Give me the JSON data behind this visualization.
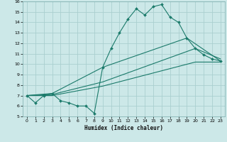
{
  "xlabel": "Humidex (Indice chaleur)",
  "bg_color": "#cce8e8",
  "grid_color": "#aacfcf",
  "line_color": "#1a7a6a",
  "xlim": [
    -0.5,
    23.5
  ],
  "ylim": [
    5,
    16
  ],
  "xticks": [
    0,
    1,
    2,
    3,
    4,
    5,
    6,
    7,
    8,
    9,
    10,
    11,
    12,
    13,
    14,
    15,
    16,
    17,
    18,
    19,
    20,
    21,
    22,
    23
  ],
  "yticks": [
    5,
    6,
    7,
    8,
    9,
    10,
    11,
    12,
    13,
    14,
    15,
    16
  ],
  "main_line": {
    "x": [
      0,
      1,
      2,
      3,
      4,
      5,
      6,
      7,
      8,
      9,
      10,
      11,
      12,
      13,
      14,
      15,
      16,
      17,
      18,
      19,
      20,
      21,
      22,
      23
    ],
    "y": [
      7.0,
      6.3,
      7.0,
      7.2,
      6.5,
      6.3,
      6.0,
      6.0,
      5.3,
      9.7,
      11.5,
      13.0,
      14.3,
      15.3,
      14.7,
      15.5,
      15.7,
      14.5,
      14.0,
      12.5,
      11.5,
      10.9,
      10.5,
      10.3
    ]
  },
  "extra_lines": [
    {
      "x": [
        0,
        3,
        9,
        19,
        23
      ],
      "y": [
        7.0,
        7.2,
        9.7,
        12.5,
        10.3
      ]
    },
    {
      "x": [
        0,
        3,
        9,
        20,
        23
      ],
      "y": [
        7.0,
        7.1,
        8.3,
        11.5,
        10.5
      ]
    },
    {
      "x": [
        0,
        3,
        9,
        20,
        23
      ],
      "y": [
        7.0,
        7.0,
        7.9,
        10.2,
        10.2
      ]
    }
  ]
}
